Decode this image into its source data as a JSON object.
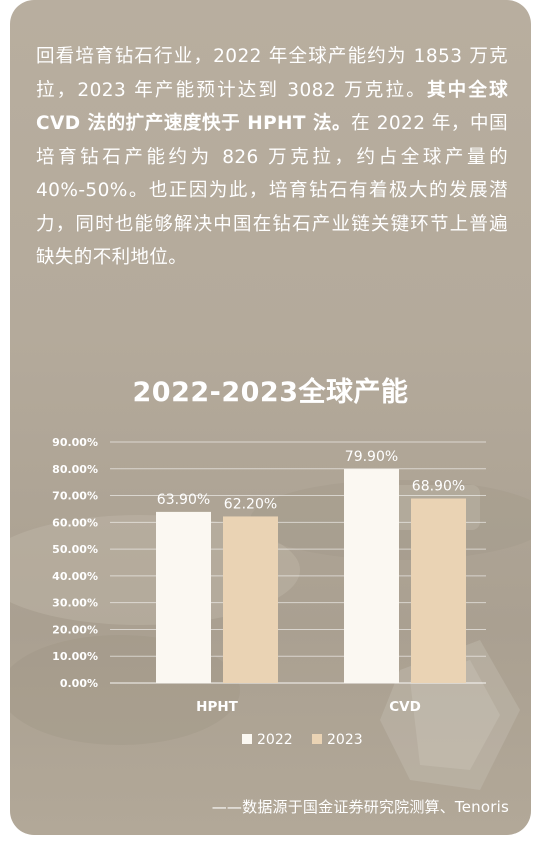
{
  "intro": {
    "part1": "回看培育钻石行业，2022 年全球产能约为 1853 万克拉，2023 年产能预计达到 3082 万克拉。",
    "part2_bold": "其中全球 CVD 法的扩产速度快于 HPHT 法。",
    "part3": "在 2022 年，中国培育钻石产能约为 826 万克拉，约占全球产量的 40%-50%。也正因为此，培育钻石有着极大的发展潜力，同时也能够解决中国在钻石产业链关键环节上普遍缺失的不利地位。"
  },
  "chart_data": {
    "type": "bar",
    "title": "2022-2023全球产能",
    "categories": [
      "HPHT",
      "CVD"
    ],
    "series": [
      {
        "name": "2022",
        "values": [
          63.9,
          79.9
        ],
        "labels": [
          "63.90%",
          "79.90%"
        ],
        "color": "#fbf8f2"
      },
      {
        "name": "2023",
        "values": [
          62.2,
          68.9
        ],
        "labels": [
          "62.20%",
          "68.90%"
        ],
        "color": "#ead3b4"
      }
    ],
    "yticks": [
      "0.00%",
      "10.00%",
      "20.00%",
      "30.00%",
      "40.00%",
      "50.00%",
      "60.00%",
      "70.00%",
      "80.00%",
      "90.00%"
    ],
    "ylim": [
      0,
      90
    ],
    "grid": true,
    "legend_position": "bottom",
    "xlabel": "",
    "ylabel": ""
  },
  "source": "——数据源于国金证券研究院测算、Tenoris",
  "colors": {
    "background": "#b4aa9b",
    "text": "#ffffff",
    "series_2022": "#fbf8f2",
    "series_2023": "#ead3b4"
  }
}
